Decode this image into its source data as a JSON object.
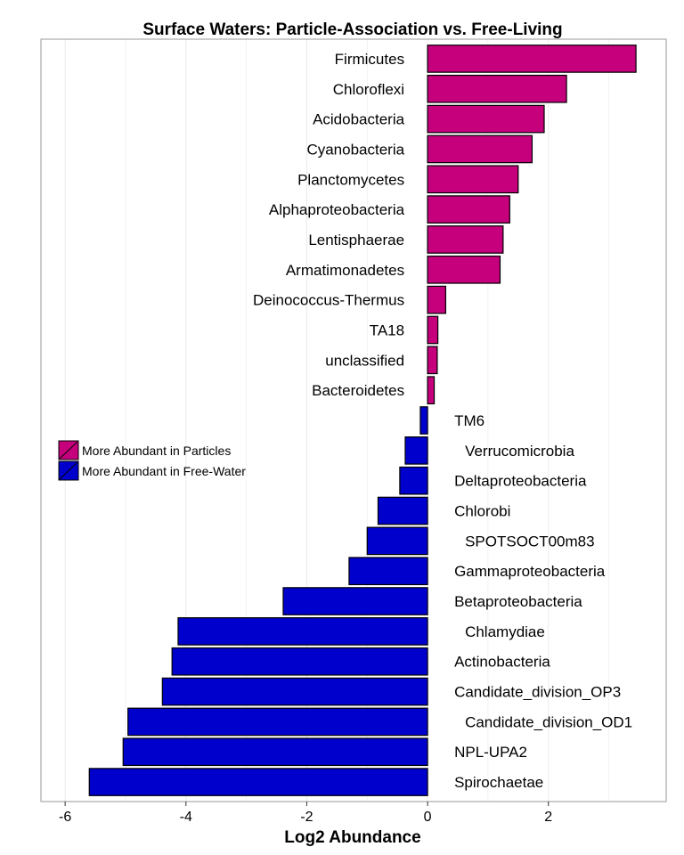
{
  "chart_data": {
    "type": "bar",
    "orientation": "horizontal",
    "title": "Surface Waters: Particle-Association vs. Free-Living",
    "xlabel": "Log2 Abundance",
    "ylabel": "",
    "xlim": [
      -6.4,
      3.95
    ],
    "xticks": [
      -6,
      -4,
      -2,
      0,
      2
    ],
    "grid": true,
    "legend_position": "left, middle",
    "colors": {
      "particles": "#C6007C",
      "free_water": "#0000CC",
      "border": "#000000",
      "grid": "#EBEBEB",
      "panel_border": "#999999"
    },
    "legend": [
      {
        "key": "particles",
        "label": "More Abundant in Particles"
      },
      {
        "key": "free_water",
        "label": "More Abundant in Free-Water"
      }
    ],
    "bars": [
      {
        "category": "Firmicutes",
        "value": 3.45,
        "group": "particles"
      },
      {
        "category": "Chloroflexi",
        "value": 2.3,
        "group": "particles"
      },
      {
        "category": "Acidobacteria",
        "value": 1.93,
        "group": "particles"
      },
      {
        "category": "Cyanobacteria",
        "value": 1.73,
        "group": "particles"
      },
      {
        "category": "Planctomycetes",
        "value": 1.5,
        "group": "particles"
      },
      {
        "category": "Alphaproteobacteria",
        "value": 1.36,
        "group": "particles"
      },
      {
        "category": "Lentisphaerae",
        "value": 1.25,
        "group": "particles"
      },
      {
        "category": "Armatimonadetes",
        "value": 1.2,
        "group": "particles"
      },
      {
        "category": "Deinococcus-Thermus",
        "value": 0.3,
        "group": "particles"
      },
      {
        "category": "TA18",
        "value": 0.17,
        "group": "particles"
      },
      {
        "category": "unclassified",
        "value": 0.16,
        "group": "particles"
      },
      {
        "category": "Bacteroidetes",
        "value": 0.11,
        "group": "particles"
      },
      {
        "category": "TM6",
        "value": -0.12,
        "group": "free_water"
      },
      {
        "category": "Verrucomicrobia",
        "value": -0.37,
        "group": "free_water"
      },
      {
        "category": "Deltaproteobacteria",
        "value": -0.46,
        "group": "free_water"
      },
      {
        "category": "Chlorobi",
        "value": -0.82,
        "group": "free_water"
      },
      {
        "category": "SPOTSOCT00m83",
        "value": -1.0,
        "group": "free_water"
      },
      {
        "category": "Gammaproteobacteria",
        "value": -1.3,
        "group": "free_water"
      },
      {
        "category": "Betaproteobacteria",
        "value": -2.39,
        "group": "free_water"
      },
      {
        "category": "Chlamydiae",
        "value": -4.13,
        "group": "free_water"
      },
      {
        "category": "Actinobacteria",
        "value": -4.23,
        "group": "free_water"
      },
      {
        "category": "Candidate_division_OP3",
        "value": -4.39,
        "group": "free_water"
      },
      {
        "category": "Candidate_division_OD1",
        "value": -4.96,
        "group": "free_water"
      },
      {
        "category": "NPL-UPA2",
        "value": -5.04,
        "group": "free_water"
      },
      {
        "category": "Spirochaetae",
        "value": -5.6,
        "group": "free_water"
      }
    ]
  }
}
